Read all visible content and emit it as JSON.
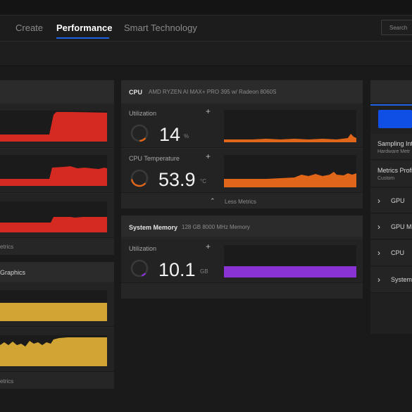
{
  "nav": {
    "tabs": [
      {
        "label": "Create"
      },
      {
        "label": "Performance"
      },
      {
        "label": "Smart Technology"
      }
    ],
    "search_label": "Search"
  },
  "left": {
    "footer_label_1": "etrics",
    "gpu_title": "Graphics",
    "footer_label_2": "etrics"
  },
  "cpu": {
    "title": "CPU",
    "subtitle": "AMD RYZEN AI MAX+ PRO 395 w/ Radeon 8060S",
    "utilization": {
      "label": "Utilization",
      "value": "14",
      "unit": "%"
    },
    "temperature": {
      "label": "CPU Temperature",
      "value": "53.9",
      "unit": "°C"
    },
    "less_metrics": "Less Metrics"
  },
  "memory": {
    "title": "System Memory",
    "subtitle": "128 GB 8000 MHz Memory",
    "utilization": {
      "label": "Utilization",
      "value": "10.1",
      "unit": "GB"
    }
  },
  "sidebar": {
    "sampling_label": "Sampling Int",
    "sampling_sub": "Hardware Metr",
    "profile_label": "Metrics Profi",
    "profile_sub": "Custom",
    "items": [
      {
        "label": "GPU"
      },
      {
        "label": "GPU M"
      },
      {
        "label": "CPU"
      },
      {
        "label": "System"
      }
    ]
  },
  "colors": {
    "accent": "#1e63e6",
    "red": "#d42a22",
    "orange": "#e0661a",
    "gold": "#d1a534",
    "purple": "#8a33d4"
  },
  "gauges": {
    "cpu_utilization_pct": 14,
    "cpu_temperature_fraction": 0.45,
    "memory_fraction": 0.08
  }
}
